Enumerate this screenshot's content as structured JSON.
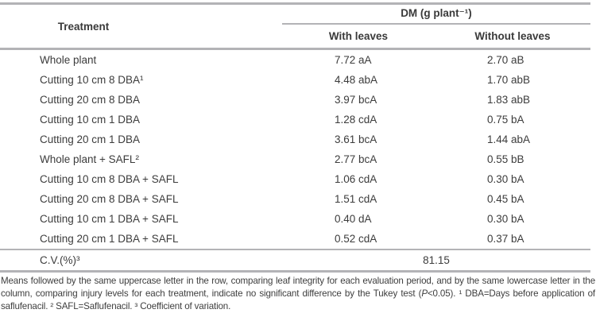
{
  "table": {
    "treatment_header": "Treatment",
    "group_header": "DM (g plant⁻¹)",
    "col_with_leaves": "With leaves",
    "col_without_leaves": "Without leaves",
    "rows": [
      {
        "treatment": "Whole plant",
        "with_leaves": "7.72 aA",
        "without_leaves": "2.70 aB"
      },
      {
        "treatment": "Cutting 10 cm 8 DBA¹",
        "with_leaves": "4.48 abA",
        "without_leaves": "1.70 abB"
      },
      {
        "treatment": "Cutting 20 cm 8 DBA",
        "with_leaves": "3.97 bcA",
        "without_leaves": "1.83 abB"
      },
      {
        "treatment": "Cutting 10 cm 1 DBA",
        "with_leaves": "1.28 cdA",
        "without_leaves": "0.75 bA"
      },
      {
        "treatment": "Cutting 20 cm 1 DBA",
        "with_leaves": "3.61 bcA",
        "without_leaves": "1.44 abA"
      },
      {
        "treatment": "Whole plant + SAFL²",
        "with_leaves": "2.77 bcA",
        "without_leaves": "0.55 bB"
      },
      {
        "treatment": "Cutting 10 cm 8 DBA + SAFL",
        "with_leaves": "1.06 cdA",
        "without_leaves": "0.30 bA"
      },
      {
        "treatment": "Cutting 20 cm 8 DBA + SAFL",
        "with_leaves": "1.51 cdA",
        "without_leaves": "0.45 bA"
      },
      {
        "treatment": "Cutting 10 cm 1 DBA + SAFL",
        "with_leaves": "0.40 dA",
        "without_leaves": "0.30 bA"
      },
      {
        "treatment": "Cutting 20 cm 1 DBA + SAFL",
        "with_leaves": "0.52 cdA",
        "without_leaves": "0.37 bA"
      }
    ],
    "cv": {
      "label": "C.V.(%)³",
      "value": "81.15"
    }
  },
  "footnote": {
    "part1": "Means followed by the same uppercase letter in the row, comparing leaf integrity for each evaluation period, and by the same lowercase letter in the column, comparing injury levels for each treatment, indicate no significant difference by the Tukey test (",
    "p_italic": "P",
    "part2": "<0.05). ¹ DBA=Days before application of saflufenacil. ² SAFL=Saflufenacil. ³ Coefficient of variation."
  },
  "colors": {
    "rule": "#b3b3b6",
    "text": "#3c3c3c"
  }
}
